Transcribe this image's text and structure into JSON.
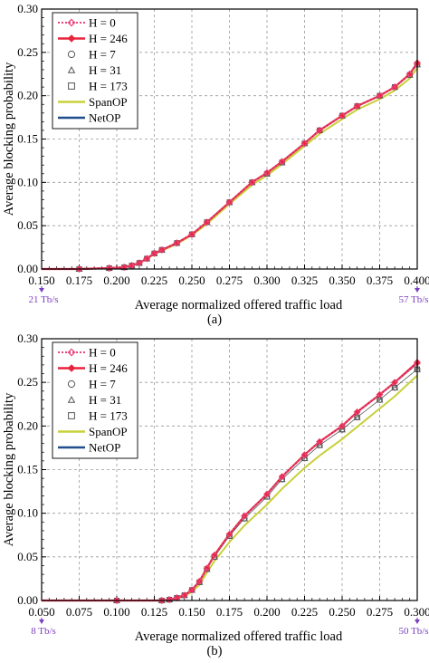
{
  "chart_data": [
    {
      "type": "line",
      "caption": "(a)",
      "xlabel": "Average normalized offered traffic load",
      "ylabel": "Average blocking probability",
      "xlim": [
        0.15,
        0.4
      ],
      "ylim": [
        0,
        0.3
      ],
      "xticks": [
        "0.150",
        "0.175",
        "0.200",
        "0.225",
        "0.250",
        "0.275",
        "0.300",
        "0.325",
        "0.350",
        "0.375",
        "0.400"
      ],
      "yticks": [
        "0.00",
        "0.05",
        "0.10",
        "0.15",
        "0.20",
        "0.25",
        "0.30"
      ],
      "grid": true,
      "legend_position": "top-left",
      "left_annotation": "21 Tb/s",
      "right_annotation": "57 Tb/s",
      "x": [
        0.15,
        0.175,
        0.195,
        0.205,
        0.21,
        0.215,
        0.22,
        0.225,
        0.23,
        0.24,
        0.25,
        0.26,
        0.275,
        0.29,
        0.3,
        0.31,
        0.325,
        0.335,
        0.35,
        0.36,
        0.375,
        0.385,
        0.395,
        0.4
      ],
      "series": [
        {
          "name": "H = 0",
          "color": "#e8457a",
          "style": "dotted-diamond",
          "values": [
            0.0,
            0.0,
            0.001,
            0.002,
            0.004,
            0.007,
            0.012,
            0.018,
            0.022,
            0.03,
            0.04,
            0.054,
            0.077,
            0.1,
            0.111,
            0.124,
            0.145,
            0.16,
            0.177,
            0.188,
            0.2,
            0.21,
            0.225,
            0.237
          ]
        },
        {
          "name": "H = 246",
          "color": "#e8243c",
          "style": "solid-diamond",
          "values": [
            0.0,
            0.0,
            0.001,
            0.002,
            0.004,
            0.007,
            0.012,
            0.018,
            0.022,
            0.03,
            0.04,
            0.054,
            0.077,
            0.1,
            0.111,
            0.124,
            0.145,
            0.16,
            0.177,
            0.188,
            0.2,
            0.21,
            0.225,
            0.238
          ]
        },
        {
          "name": "H = 7",
          "color": "#555555",
          "style": "circle",
          "values": [
            0.0,
            0.0,
            0.001,
            0.002,
            0.004,
            0.007,
            0.012,
            0.018,
            0.022,
            0.03,
            0.04,
            0.054,
            0.077,
            0.1,
            0.11,
            0.123,
            0.145,
            0.16,
            0.177,
            0.188,
            0.2,
            0.21,
            0.224,
            0.236
          ]
        },
        {
          "name": "H = 31",
          "color": "#555555",
          "style": "triangle",
          "values": [
            0.0,
            0.0,
            0.001,
            0.002,
            0.004,
            0.007,
            0.012,
            0.018,
            0.022,
            0.03,
            0.04,
            0.054,
            0.077,
            0.1,
            0.11,
            0.123,
            0.145,
            0.16,
            0.177,
            0.188,
            0.2,
            0.21,
            0.224,
            0.236
          ]
        },
        {
          "name": "H = 173",
          "color": "#555555",
          "style": "square",
          "values": [
            0.0,
            0.0,
            0.001,
            0.002,
            0.004,
            0.007,
            0.012,
            0.018,
            0.022,
            0.03,
            0.04,
            0.054,
            0.077,
            0.1,
            0.11,
            0.123,
            0.145,
            0.16,
            0.177,
            0.188,
            0.2,
            0.21,
            0.224,
            0.236
          ]
        },
        {
          "name": "SpanOP",
          "color": "#c8d03a",
          "style": "solid",
          "values": [
            0.0,
            0.0,
            0.001,
            0.002,
            0.004,
            0.007,
            0.012,
            0.017,
            0.021,
            0.029,
            0.039,
            0.052,
            0.075,
            0.097,
            0.108,
            0.121,
            0.142,
            0.156,
            0.173,
            0.184,
            0.196,
            0.206,
            0.22,
            0.232
          ]
        },
        {
          "name": "NetOP",
          "color": "#1f4e8c",
          "style": "solid",
          "values": [
            0.0,
            0.0,
            0.001,
            0.002,
            0.004,
            0.007,
            0.012,
            0.018,
            0.022,
            0.03,
            0.04,
            0.054,
            0.077,
            0.1,
            0.111,
            0.124,
            0.145,
            0.16,
            0.177,
            0.188,
            0.2,
            0.21,
            0.225,
            0.237
          ]
        }
      ]
    },
    {
      "type": "line",
      "caption": "(b)",
      "xlabel": "Average normalized offered traffic load",
      "ylabel": "Average blocking probability",
      "xlim": [
        0.05,
        0.3
      ],
      "ylim": [
        0,
        0.3
      ],
      "xticks": [
        "0.050",
        "0.075",
        "0.100",
        "0.125",
        "0.150",
        "0.175",
        "0.200",
        "0.225",
        "0.250",
        "0.275",
        "0.300"
      ],
      "yticks": [
        "0.00",
        "0.05",
        "0.10",
        "0.15",
        "0.20",
        "0.25",
        "0.30"
      ],
      "grid": true,
      "legend_position": "top-left",
      "left_annotation": "8 Tb/s",
      "right_annotation": "50 Tb/s",
      "x": [
        0.05,
        0.1,
        0.13,
        0.135,
        0.14,
        0.145,
        0.15,
        0.155,
        0.16,
        0.165,
        0.175,
        0.185,
        0.2,
        0.21,
        0.225,
        0.235,
        0.25,
        0.26,
        0.275,
        0.285,
        0.3
      ],
      "series": [
        {
          "name": "H = 0",
          "color": "#e8457a",
          "style": "dotted-diamond",
          "values": [
            0.0,
            0.0,
            0.0,
            0.001,
            0.003,
            0.006,
            0.012,
            0.022,
            0.037,
            0.052,
            0.076,
            0.097,
            0.122,
            0.142,
            0.167,
            0.182,
            0.2,
            0.216,
            0.236,
            0.25,
            0.272
          ]
        },
        {
          "name": "H = 246",
          "color": "#e8243c",
          "style": "solid-diamond",
          "values": [
            0.0,
            0.0,
            0.0,
            0.001,
            0.003,
            0.006,
            0.012,
            0.022,
            0.037,
            0.052,
            0.076,
            0.097,
            0.122,
            0.142,
            0.167,
            0.182,
            0.2,
            0.216,
            0.236,
            0.25,
            0.273
          ]
        },
        {
          "name": "H = 7",
          "color": "#555555",
          "style": "circle",
          "values": [
            0.0,
            0.0,
            0.0,
            0.001,
            0.003,
            0.006,
            0.012,
            0.021,
            0.036,
            0.05,
            0.074,
            0.094,
            0.119,
            0.139,
            0.163,
            0.178,
            0.196,
            0.21,
            0.23,
            0.244,
            0.265
          ]
        },
        {
          "name": "H = 31",
          "color": "#555555",
          "style": "triangle",
          "values": [
            0.0,
            0.0,
            0.0,
            0.001,
            0.003,
            0.006,
            0.012,
            0.021,
            0.036,
            0.05,
            0.074,
            0.094,
            0.119,
            0.139,
            0.163,
            0.178,
            0.196,
            0.21,
            0.23,
            0.244,
            0.265
          ]
        },
        {
          "name": "H = 173",
          "color": "#555555",
          "style": "square",
          "values": [
            0.0,
            0.0,
            0.0,
            0.001,
            0.003,
            0.006,
            0.012,
            0.021,
            0.036,
            0.05,
            0.074,
            0.094,
            0.119,
            0.139,
            0.163,
            0.178,
            0.196,
            0.21,
            0.23,
            0.244,
            0.265
          ]
        },
        {
          "name": "SpanOP",
          "color": "#c8d03a",
          "style": "solid",
          "values": [
            0.0,
            0.0,
            0.0,
            0.001,
            0.002,
            0.005,
            0.01,
            0.018,
            0.032,
            0.045,
            0.067,
            0.086,
            0.11,
            0.128,
            0.152,
            0.166,
            0.185,
            0.199,
            0.22,
            0.234,
            0.258
          ]
        },
        {
          "name": "NetOP",
          "color": "#1f4e8c",
          "style": "solid",
          "values": [
            0.0,
            0.0,
            0.0,
            0.001,
            0.003,
            0.006,
            0.012,
            0.022,
            0.037,
            0.052,
            0.076,
            0.097,
            0.122,
            0.142,
            0.167,
            0.182,
            0.2,
            0.216,
            0.236,
            0.25,
            0.272
          ]
        }
      ]
    }
  ]
}
